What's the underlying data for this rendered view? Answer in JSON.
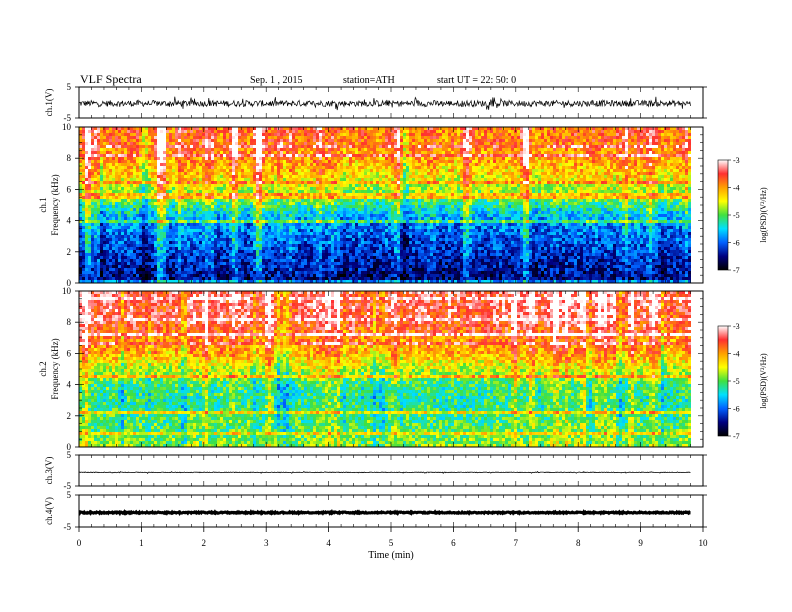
{
  "header": {
    "title": "VLF  Spectra",
    "date": "Sep. 1  , 2015",
    "station": "station=ATH",
    "start": "start  UT  =   22: 50: 0"
  },
  "colorbar": {
    "label": "log(PSD)(V²/Hz)",
    "ticks": [
      "-3",
      "-4",
      "-5",
      "-6",
      "-7"
    ],
    "stops": [
      "#ffffff",
      "#ff3030",
      "#ffa000",
      "#ffff00",
      "#40e040",
      "#00e0ff",
      "#0060ff",
      "#000080",
      "#000000"
    ]
  },
  "chart_data": [
    {
      "type": "line",
      "panel": "ch1-waveform",
      "ylabel": "ch.1(V)",
      "yticks": [
        "5",
        "-5"
      ],
      "ylim": [
        -5,
        5
      ],
      "xlim": [
        0,
        10
      ],
      "x_end": 9.8,
      "baseline": -0.3,
      "amplitude_typical": 1.0,
      "amplitude_max": 2.2
    },
    {
      "type": "heatmap",
      "panel": "ch1-spectrogram",
      "ylabel": "ch.1",
      "ylabel2": "Frequency  (kHz)",
      "yticks": [
        "10",
        "8",
        "6",
        "4",
        "2",
        "0"
      ],
      "ylim": [
        0,
        10
      ],
      "xlim": [
        0,
        10
      ],
      "x_end": 9.8,
      "zlim": [
        -7,
        -3
      ],
      "profile_logpsd": [
        [
          0,
          -6.6
        ],
        [
          1,
          -6.4
        ],
        [
          2,
          -6.2
        ],
        [
          3,
          -6.0
        ],
        [
          4,
          -5.8
        ],
        [
          5,
          -5.2
        ],
        [
          6,
          -4.7
        ],
        [
          7,
          -4.3
        ],
        [
          8,
          -4.0
        ],
        [
          9,
          -3.8
        ],
        [
          10,
          -3.8
        ]
      ]
    },
    {
      "type": "heatmap",
      "panel": "ch2-spectrogram",
      "ylabel": "ch.2",
      "ylabel2": "Frequency  (kHz)",
      "yticks": [
        "10",
        "8",
        "6",
        "4",
        "2",
        "0"
      ],
      "ylim": [
        0,
        10
      ],
      "xlim": [
        0,
        10
      ],
      "x_end": 9.8,
      "zlim": [
        -7,
        -3
      ],
      "profile_logpsd": [
        [
          0,
          -4.8
        ],
        [
          1,
          -5.0
        ],
        [
          2,
          -5.1
        ],
        [
          3,
          -5.2
        ],
        [
          4,
          -5.1
        ],
        [
          5,
          -4.6
        ],
        [
          6,
          -4.1
        ],
        [
          7,
          -3.8
        ],
        [
          8,
          -3.5
        ],
        [
          9,
          -3.4
        ],
        [
          10,
          -3.4
        ]
      ]
    },
    {
      "type": "line",
      "panel": "ch3-waveform",
      "ylabel": "ch.3(V)",
      "yticks": [
        "5",
        "-5"
      ],
      "ylim": [
        -5,
        5
      ],
      "xlim": [
        0,
        10
      ],
      "x_end": 9.8,
      "baseline": -0.6,
      "amplitude_typical": 0.1,
      "amplitude_max": 0.3
    },
    {
      "type": "line",
      "panel": "ch4-waveform",
      "ylabel": "ch.4(V)",
      "yticks": [
        "5",
        "-5"
      ],
      "ylim": [
        -5,
        5
      ],
      "xlim": [
        0,
        10
      ],
      "x_end": 9.8,
      "baseline": -0.5,
      "amplitude_typical": 0.2,
      "amplitude_max": 0.2
    }
  ],
  "xaxis": {
    "label": "Time  (min)",
    "ticks": [
      "0",
      "1",
      "2",
      "3",
      "4",
      "5",
      "6",
      "7",
      "8",
      "9",
      "10"
    ]
  }
}
